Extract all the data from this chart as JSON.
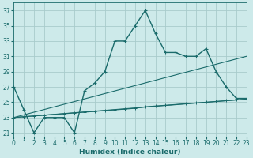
{
  "xlabel": "Humidex (Indice chaleur)",
  "bg_color": "#cdeaea",
  "grid_color": "#a8cccc",
  "line_color": "#1a6b6b",
  "x_hours": [
    0,
    1,
    2,
    3,
    4,
    5,
    6,
    7,
    8,
    9,
    10,
    11,
    12,
    13,
    14,
    15,
    16,
    17,
    18,
    19,
    20,
    21,
    22,
    23
  ],
  "series1": [
    27,
    24,
    21,
    23,
    23,
    23,
    21,
    26.5,
    27.5,
    29,
    33,
    33,
    35,
    37,
    34,
    31.5,
    31.5,
    31,
    31,
    32,
    29,
    27,
    25.5,
    25.5
  ],
  "series2": [
    23,
    23.1,
    23.2,
    23.3,
    23.4,
    23.5,
    23.6,
    23.7,
    23.8,
    23.9,
    24.0,
    24.1,
    24.2,
    24.4,
    24.5,
    24.6,
    24.7,
    24.8,
    24.9,
    25.0,
    25.1,
    25.2,
    25.3,
    25.4
  ],
  "line1_x": [
    0,
    23
  ],
  "line1_y": [
    23,
    31
  ],
  "line2_x": [
    0,
    23
  ],
  "line2_y": [
    23,
    25.4
  ],
  "xlim": [
    0,
    23
  ],
  "ylim": [
    20.5,
    38
  ],
  "yticks": [
    21,
    23,
    25,
    27,
    29,
    31,
    33,
    35,
    37
  ],
  "xticks": [
    0,
    1,
    2,
    3,
    4,
    5,
    6,
    7,
    8,
    9,
    10,
    11,
    12,
    13,
    14,
    15,
    16,
    17,
    18,
    19,
    20,
    21,
    22,
    23
  ],
  "tick_fontsize": 5.5,
  "label_fontsize": 6.5
}
